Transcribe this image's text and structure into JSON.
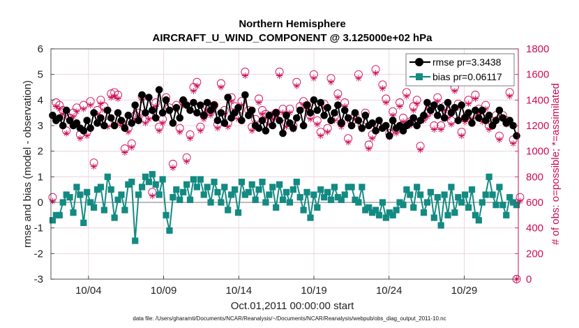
{
  "chart_data": {
    "type": "line",
    "title": "Northern Hemisphere",
    "subtitle": "AIRCRAFT_U_WIND_COMPONENT @ 3.125000e+02 hPa",
    "xlabel": "Oct.01,2011 00:00:00 start",
    "ylabel_left": "rmse and bias (model - observation)",
    "ylabel_right": "# of obs: o=possible; *=assimilated",
    "footnote": "data file: /Users/gharamti/Documents/NCAR/Reanalysis/~/Documents/NCAR/Reanalysis/webpub/obs_diag_output_2011-10.nc",
    "xlim": [
      1.5,
      32.6
    ],
    "ylim_left": [
      -3,
      6
    ],
    "ylim_right": [
      0,
      1800
    ],
    "x_tick_labels": [
      "10/04",
      "10/09",
      "10/14",
      "10/19",
      "10/24",
      "10/29"
    ],
    "x_tick_positions": [
      4,
      9,
      14,
      19,
      24,
      29
    ],
    "y_ticks_left": [
      "6",
      "5",
      "4",
      "3",
      "2",
      "1",
      "0",
      "-1",
      "-2",
      "-3"
    ],
    "y_ticks_right": [
      "1800",
      "1600",
      "1400",
      "1200",
      "1000",
      "800",
      "600",
      "400",
      "200",
      "0"
    ],
    "colors": {
      "rmse": "#000000",
      "bias": "#138a82",
      "obs": "#cc0b55",
      "zero_line": "#bbbbbb"
    },
    "series": [
      {
        "name": "rmse",
        "legend": "rmse pr=3.3438",
        "values": [
          3.4,
          3.2,
          3.3,
          3.0,
          3.6,
          3.2,
          3.0,
          3.1,
          2.9,
          2.8,
          3.2,
          2.9,
          3.5,
          3.1,
          3.3,
          3.0,
          3.6,
          3.3,
          3.0,
          3.5,
          3.2,
          2.9,
          3.4,
          3.1,
          3.8,
          3.2,
          4.2,
          3.5,
          4.1,
          3.6,
          3.3,
          4.4,
          3.5,
          4.0,
          3.6,
          3.1,
          3.7,
          3.3,
          4.0,
          3.8,
          3.6,
          3.9,
          3.5,
          3.8,
          3.4,
          3.9,
          3.6,
          3.8,
          3.2,
          3.5,
          3.1,
          4.1,
          3.3,
          3.5,
          3.7,
          3.2,
          4.2,
          3.4,
          3.6,
          3.0,
          2.9,
          3.2,
          2.8,
          3.4,
          3.0,
          3.5,
          3.2,
          2.7,
          3.4,
          3.1,
          2.9,
          3.3,
          3.6,
          3.0,
          3.8,
          3.5,
          4.0,
          3.6,
          3.9,
          3.4,
          3.7,
          3.2,
          3.5,
          3.8,
          3.1,
          3.6,
          3.3,
          3.0,
          3.5,
          3.2,
          2.9,
          3.4,
          3.0,
          3.1,
          2.8,
          3.2,
          2.9,
          3.0,
          2.6,
          3.2,
          2.9,
          3.0,
          2.8,
          3.0,
          3.1,
          3.3,
          3.0,
          3.2,
          3.4,
          3.9,
          3.6,
          3.8,
          3.4,
          3.7,
          3.3,
          3.9,
          3.5,
          3.7,
          3.2,
          3.8,
          3.3,
          3.5,
          3.1,
          3.6,
          3.3,
          3.6,
          3.2,
          3.4,
          3.0,
          3.2,
          3.6,
          3.3,
          3.1,
          3.2,
          3.0,
          2.6
        ]
      },
      {
        "name": "bias",
        "legend": "bias pr=0.06117",
        "values": [
          -0.7,
          -0.5,
          -0.5,
          0.0,
          0.3,
          0.2,
          -0.4,
          0.6,
          0.3,
          -0.8,
          0.4,
          0.0,
          -0.2,
          0.5,
          0.6,
          -0.3,
          1.0,
          0.5,
          -0.6,
          0.1,
          0.3,
          -0.3,
          0.7,
          0.8,
          -1.5,
          0.3,
          0.6,
          1.0,
          0.8,
          1.1,
          0.7,
          0.3,
          0.9,
          -0.5,
          -1.1,
          0.2,
          0.5,
          0.1,
          0.4,
          0.7,
          0.1,
          0.9,
          0.6,
          0.9,
          0.3,
          0.6,
          0.0,
          0.8,
          0.4,
          0.0,
          0.6,
          -0.3,
          0.3,
          0.5,
          -0.4,
          0.8,
          0.3,
          0.4,
          0.7,
          0.1,
          0.5,
          0.8,
          0.0,
          0.3,
          0.6,
          -0.2,
          0.7,
          0.1,
          0.4,
          0.0,
          0.5,
          0.8,
          0.2,
          -0.3,
          0.4,
          -0.6,
          0.3,
          -0.2,
          0.5,
          0.2,
          0.4,
          0.1,
          0.6,
          0.2,
          0.1,
          0.3,
          0.6,
          0.6,
          0.1,
          0.0,
          0.6,
          -0.3,
          -0.2,
          -0.4,
          -0.3,
          -0.5,
          0.0,
          -0.6,
          -0.4,
          -0.5,
          -0.3,
          0.0,
          -0.1,
          0.5,
          0.3,
          -0.2,
          0.6,
          0.3,
          -0.4,
          0.0,
          0.4,
          -0.6,
          0.2,
          -0.9,
          0.3,
          -0.5,
          0.6,
          -0.4,
          0.2,
          0.0,
          0.3,
          -0.2,
          0.5,
          -0.5,
          -0.7,
          0.0,
          0.3,
          1.0,
          0.3,
          -0.1,
          0.6,
          -0.1,
          -0.5,
          0.2,
          0.0,
          -0.1
        ]
      },
      {
        "name": "obs_possible",
        "legend": "o=possible",
        "values": [
          640,
          1380,
          1360,
          1320,
          1160,
          1260,
          1300,
          1340,
          1130,
          1360,
          1150,
          1390,
          910,
          1320,
          1400,
          1350,
          1220,
          1450,
          1460,
          1440,
          1230,
          1020,
          1180,
          1060,
          1280,
          1300,
          1430,
          1250,
          1280,
          680,
          1380,
          1190,
          1250,
          1420,
          1340,
          900,
          1360,
          1180,
          1390,
          950,
          1130,
          1500,
          1540,
          1190,
          1280,
          1350,
          1310,
          1360,
          1210,
          1530,
          1320,
          1220,
          1420,
          1350,
          1280,
          1390,
          1620,
          1320,
          1190,
          1250,
          1410,
          1320,
          1290,
          1240,
          1280,
          1300,
          1620,
          1330,
          1220,
          1330,
          1200,
          1540,
          1350,
          1390,
          1360,
          1280,
          1600,
          1240,
          1150,
          1370,
          1180,
          1570,
          1270,
          1450,
          1220,
          1380,
          1100,
          1230,
          1280,
          1600,
          1200,
          1300,
          1050,
          1130,
          1640,
          1200,
          1520,
          1410,
          1140,
          1310,
          1170,
          1380,
          1260,
          1460,
          1230,
          1350,
          1400,
          1040,
          1270,
          1300,
          1330,
          1200,
          1420,
          1200,
          1350,
          1290,
          1240,
          1500,
          1370,
          1150,
          1260,
          1400,
          1280,
          1440,
          1330,
          1260,
          1360,
          1200,
          1220,
          1280,
          1120,
          1280,
          1240,
          1460,
          1090,
          0,
          640
        ]
      },
      {
        "name": "obs_assimilated",
        "legend": "*=assimilated",
        "values": [
          610,
          1350,
          1330,
          1290,
          1140,
          1230,
          1270,
          1310,
          1100,
          1330,
          1120,
          1360,
          880,
          1290,
          1370,
          1320,
          1190,
          1420,
          1430,
          1410,
          1200,
          990,
          1150,
          1030,
          1250,
          1270,
          1400,
          1220,
          1250,
          650,
          1350,
          1160,
          1220,
          1390,
          1310,
          870,
          1330,
          1150,
          1360,
          920,
          1100,
          1470,
          1510,
          1160,
          1250,
          1320,
          1280,
          1330,
          1180,
          1500,
          1290,
          1190,
          1390,
          1320,
          1250,
          1360,
          1590,
          1290,
          1160,
          1220,
          1380,
          1290,
          1260,
          1210,
          1250,
          1270,
          1590,
          1300,
          1190,
          1300,
          1170,
          1510,
          1320,
          1360,
          1330,
          1250,
          1570,
          1210,
          1120,
          1340,
          1150,
          1540,
          1240,
          1420,
          1190,
          1350,
          1070,
          1200,
          1250,
          1570,
          1170,
          1270,
          1020,
          1100,
          1610,
          1170,
          1490,
          1380,
          1110,
          1280,
          1140,
          1350,
          1230,
          1430,
          1200,
          1320,
          1370,
          1010,
          1240,
          1270,
          1300,
          1170,
          1390,
          1170,
          1320,
          1260,
          1210,
          1470,
          1340,
          1120,
          1230,
          1370,
          1250,
          1410,
          1300,
          1230,
          1330,
          1170,
          1190,
          1250,
          1090,
          1250,
          1210,
          1430,
          1060,
          0,
          610
        ]
      }
    ]
  }
}
